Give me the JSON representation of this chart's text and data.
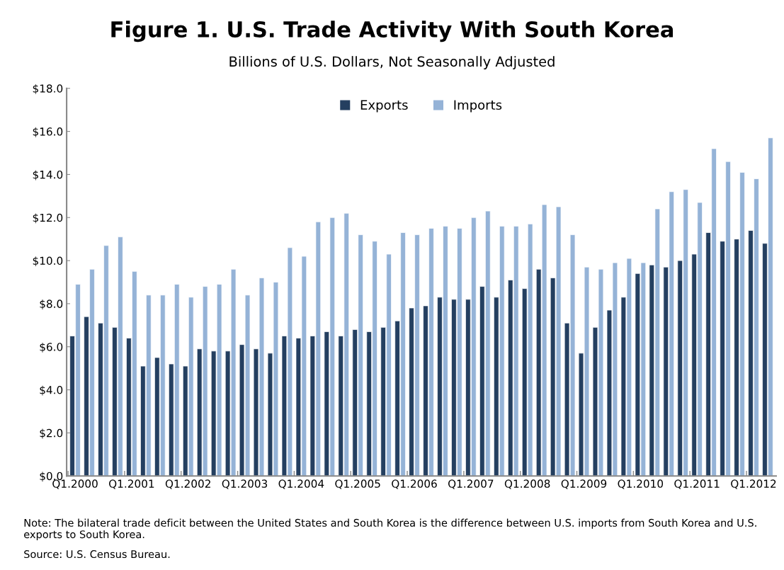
{
  "chart_data": {
    "type": "bar",
    "title": "Figure 1. U.S. Trade Activity With South Korea",
    "subtitle": "Billions of U.S. Dollars, Not Seasonally Adjusted",
    "categories": [
      "Q1.2000",
      null,
      null,
      null,
      "Q1.2001",
      null,
      null,
      null,
      "Q1.2002",
      null,
      null,
      null,
      "Q1.2003",
      null,
      null,
      null,
      "Q1.2004",
      null,
      null,
      null,
      "Q1.2005",
      null,
      null,
      null,
      "Q1.2006",
      null,
      null,
      null,
      "Q1.2007",
      null,
      null,
      null,
      "Q1.2008",
      null,
      null,
      null,
      "Q1.2009",
      null,
      null,
      null,
      "Q1.2010",
      null,
      null,
      null,
      "Q1.2011",
      null,
      null,
      null,
      "Q1.2012",
      null
    ],
    "series": [
      {
        "name": "Exports",
        "color": "#243f60",
        "values": [
          6.5,
          7.4,
          7.1,
          6.9,
          6.4,
          5.1,
          5.5,
          5.2,
          5.1,
          5.9,
          5.8,
          5.8,
          6.1,
          5.9,
          5.7,
          6.5,
          6.4,
          6.5,
          6.7,
          6.5,
          6.8,
          6.7,
          6.9,
          7.2,
          7.8,
          7.9,
          8.3,
          8.2,
          8.2,
          8.8,
          8.3,
          9.1,
          8.7,
          9.6,
          9.2,
          7.1,
          5.7,
          6.9,
          7.7,
          8.3,
          9.4,
          9.8,
          9.7,
          10.0,
          10.3,
          11.3,
          10.9,
          11.0,
          11.4,
          10.8
        ]
      },
      {
        "name": "Imports",
        "color": "#95b3d7",
        "values": [
          8.9,
          9.6,
          10.7,
          11.1,
          9.5,
          8.4,
          8.4,
          8.9,
          8.3,
          8.8,
          8.9,
          9.6,
          8.4,
          9.2,
          9.0,
          10.6,
          10.2,
          11.8,
          12.0,
          12.2,
          11.2,
          10.9,
          10.3,
          11.3,
          11.2,
          11.5,
          11.6,
          11.5,
          12.0,
          12.3,
          11.6,
          11.6,
          11.7,
          12.6,
          12.5,
          11.2,
          9.7,
          9.6,
          9.9,
          10.1,
          9.9,
          12.4,
          13.2,
          13.3,
          12.7,
          15.2,
          14.6,
          14.1,
          13.8,
          15.7
        ]
      }
    ],
    "ylim": [
      0,
      18
    ],
    "yticks": [
      {
        "value": 0,
        "label": "$0.0"
      },
      {
        "value": 2,
        "label": "$2.0"
      },
      {
        "value": 4,
        "label": "$4.0"
      },
      {
        "value": 6,
        "label": "$6.0"
      },
      {
        "value": 8,
        "label": "$8.0"
      },
      {
        "value": 10,
        "label": "$10.0"
      },
      {
        "value": 12,
        "label": "$12.0"
      },
      {
        "value": 14,
        "label": "$14.0"
      },
      {
        "value": 16,
        "label": "$16.0"
      },
      {
        "value": 18,
        "label": "$18.0"
      }
    ],
    "grid": false,
    "legend": "top",
    "annotations": [
      "Note: The bilateral trade deficit between the United States and South Korea is the difference between U.S. imports from South Korea and U.S. exports to South Korea.",
      "Source: U.S. Census Bureau."
    ]
  }
}
